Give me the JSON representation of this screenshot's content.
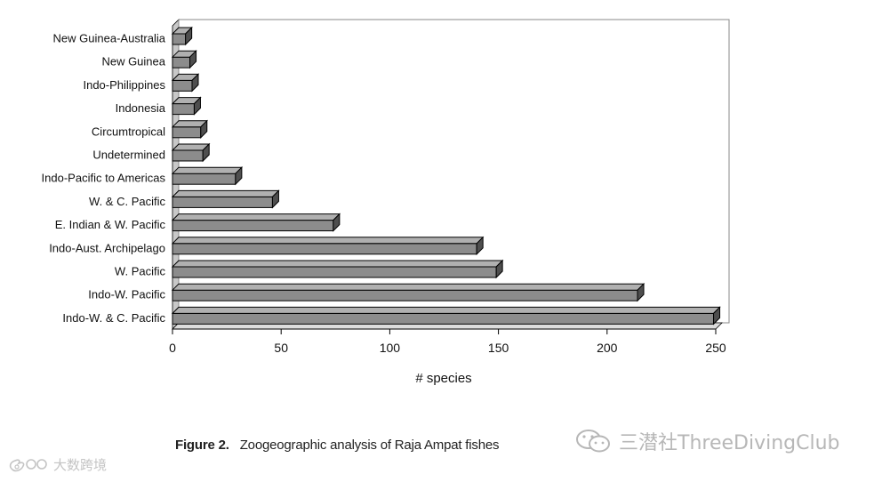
{
  "chart_data": {
    "type": "bar",
    "orientation": "horizontal",
    "style": "3d",
    "categories": [
      "New Guinea-Australia",
      "New Guinea",
      "Indo-Philippines",
      "Indonesia",
      "Circumtropical",
      "Undetermined",
      "Indo-Pacific to Americas",
      "W. & C. Pacific",
      "E. Indian & W. Pacific",
      "Indo-Aust. Archipelago",
      "W. Pacific",
      "Indo-W. Pacific",
      "Indo-W. & C. Pacific"
    ],
    "values": [
      6,
      8,
      9,
      10,
      13,
      14,
      29,
      46,
      74,
      140,
      149,
      214,
      249
    ],
    "xlabel": "# species",
    "ylabel": "",
    "xlim": [
      0,
      250
    ],
    "xticks": [
      0,
      50,
      100,
      150,
      200,
      250
    ],
    "grid": false,
    "legend": "none",
    "colors": {
      "bar_front": "#8c8c8c",
      "bar_top": "#b0b0b0",
      "bar_side": "#4e4e4e",
      "wall": "#c8c8c8"
    }
  },
  "caption": {
    "label": "Figure 2.",
    "text": "Zoogeographic analysis of Raja Ampat fishes"
  },
  "watermarks": {
    "right_icon": "wechat-icon",
    "right_text": "三潜社ThreeDivingClub",
    "left_icon": "weibo-icon",
    "left_text": "大数跨境"
  }
}
